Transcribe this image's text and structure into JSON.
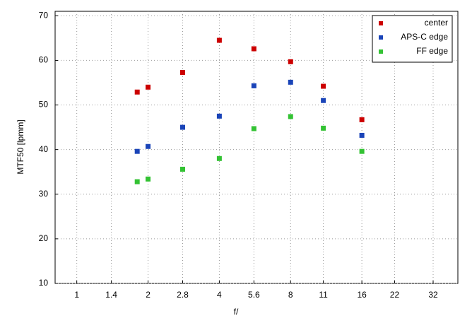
{
  "chart_data": {
    "type": "scatter",
    "x_label": "f/",
    "y_label": "MTF50 [lpmm]",
    "x_scale": "log",
    "grid": true,
    "legend_position": "upper right",
    "xlim": [
      0.81,
      40.7
    ],
    "ylim": [
      10,
      71
    ],
    "xticks": [
      1,
      1.4,
      2,
      2.8,
      4,
      5.6,
      8,
      11,
      16,
      22,
      32
    ],
    "yticks": [
      10,
      20,
      30,
      40,
      50,
      60,
      70
    ],
    "x": [
      1.8,
      2,
      2.8,
      4,
      5.6,
      8,
      11,
      16
    ],
    "series": [
      {
        "name": "center",
        "color": "#cc0000",
        "values": [
          52.9,
          54,
          57.3,
          64.5,
          62.6,
          59.7,
          54.2,
          46.7
        ]
      },
      {
        "name": "APS-C edge",
        "color": "#1a44b8",
        "values": [
          39.6,
          40.7,
          45,
          47.5,
          54.3,
          55.1,
          51,
          43.2
        ]
      },
      {
        "name": "FF edge",
        "color": "#33c233",
        "values": [
          32.8,
          33.4,
          35.6,
          38,
          44.7,
          47.4,
          44.8,
          39.6
        ]
      }
    ]
  }
}
